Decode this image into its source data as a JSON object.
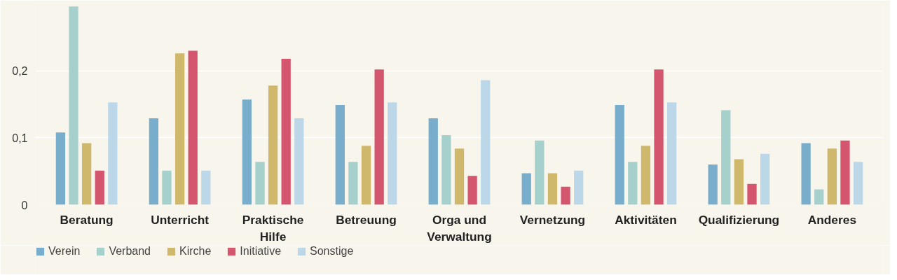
{
  "chart_data": {
    "type": "bar",
    "categories": [
      "Beratung",
      "Unterricht",
      "Praktische Hilfe",
      "Betreuung",
      "Orga und Verwaltung",
      "Vernetzung",
      "Aktivitäten",
      "Qualifizierung",
      "Anderes"
    ],
    "series": [
      {
        "name": "Verein",
        "color": "#78aecb",
        "values": [
          0.108,
          0.129,
          0.157,
          0.149,
          0.129,
          0.047,
          0.149,
          0.06,
          0.092
        ]
      },
      {
        "name": "Verband",
        "color": "#a5d0cc",
        "values": [
          0.296,
          0.051,
          0.064,
          0.064,
          0.104,
          0.096,
          0.064,
          0.141,
          0.023
        ]
      },
      {
        "name": "Kirche",
        "color": "#cfb76b",
        "values": [
          0.092,
          0.226,
          0.178,
          0.088,
          0.084,
          0.047,
          0.088,
          0.068,
          0.084
        ]
      },
      {
        "name": "Initiative",
        "color": "#d4566e",
        "values": [
          0.051,
          0.23,
          0.218,
          0.202,
          0.043,
          0.027,
          0.202,
          0.031,
          0.096
        ]
      },
      {
        "name": "Sonstige",
        "color": "#bcd8e8",
        "values": [
          0.153,
          0.051,
          0.129,
          0.153,
          0.186,
          0.051,
          0.153,
          0.076,
          0.064
        ]
      }
    ],
    "ylim": [
      0,
      0.3
    ],
    "yticks": [
      {
        "value": 0,
        "label": "0"
      },
      {
        "value": 0.1,
        "label": "0,1"
      },
      {
        "value": 0.2,
        "label": "0,2"
      }
    ],
    "grid": "y",
    "legend": "bottom left"
  }
}
